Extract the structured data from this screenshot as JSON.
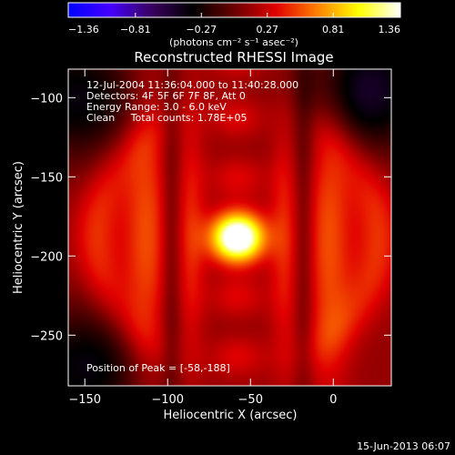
{
  "chart_data": {
    "type": "heatmap",
    "title": "Reconstructed RHESSI Image",
    "xlabel": "Heliocentric X (arcsec)",
    "ylabel": "Heliocentric Y (arcsec)",
    "xlim": [
      -160,
      35
    ],
    "ylim": [
      -282,
      -82
    ],
    "x_ticks": [
      -150,
      -100,
      -50,
      0
    ],
    "y_ticks": [
      -100,
      -150,
      -200,
      -250
    ],
    "colorbar": {
      "unit_label": "(photons cm⁻² s⁻¹ asec⁻²)",
      "ticks": [
        -1.36,
        -0.81,
        -0.27,
        0.27,
        0.81,
        1.36
      ],
      "range": [
        -1.36,
        1.36
      ],
      "colormap": [
        "#0000ff",
        "#4400ff",
        "#3a0060",
        "#000000",
        "#6a0000",
        "#e00000",
        "#ff8000",
        "#ffff00",
        "#ffffff"
      ]
    },
    "info_lines": [
      "12-Jul-2004 11:36:04.000 to 11:40:28.000",
      "Detectors: 4F 5F 6F 7F 8F, Att 0",
      "Energy Range: 3.0 - 6.0 keV",
      "Clean     Total counts: 1.78E+05"
    ],
    "peak_label": "Position of Peak = [-58,-188]",
    "peak": {
      "x": -58,
      "y": -188,
      "value": 1.36
    },
    "features": [
      {
        "name": "left-lobe-upper",
        "x": -112,
        "y": -130,
        "value": 0.55
      },
      {
        "name": "left-lobe-lower",
        "x": -112,
        "y": -245,
        "value": 0.55
      },
      {
        "name": "right-lobe-upper",
        "x": -15,
        "y": -130,
        "value": 0.6
      },
      {
        "name": "right-lobe-lower",
        "x": -15,
        "y": -255,
        "value": 0.6
      },
      {
        "name": "top-arc",
        "x": -60,
        "y": -95,
        "value": 0.5
      },
      {
        "name": "bottom-arc",
        "x": -60,
        "y": -265,
        "value": 0.5
      },
      {
        "name": "negative-corner-tr",
        "x": 20,
        "y": -95,
        "value": -0.6
      },
      {
        "name": "negative-corner-tl",
        "x": -155,
        "y": -100,
        "value": -0.5
      },
      {
        "name": "negative-corner-bl",
        "x": -150,
        "y": -270,
        "value": -0.5
      }
    ],
    "footer_date": "15-Jun-2013 06:07"
  }
}
